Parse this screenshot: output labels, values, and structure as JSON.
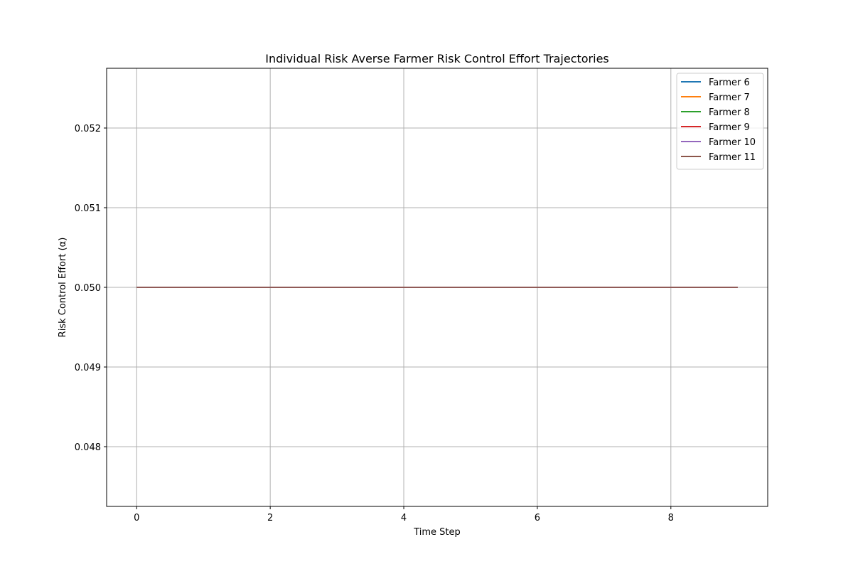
{
  "chart_data": {
    "type": "line",
    "title": "Individual Risk Averse Farmer Risk Control Effort Trajectories",
    "xlabel": "Time Step",
    "ylabel": "Risk Control Effort (α)",
    "xlim": [
      -0.45,
      9.45
    ],
    "ylim": [
      0.04725,
      0.05275
    ],
    "xticks": [
      0,
      2,
      4,
      6,
      8
    ],
    "xtick_labels": [
      "0",
      "2",
      "4",
      "6",
      "8"
    ],
    "yticks": [
      0.048,
      0.049,
      0.05,
      0.051,
      0.052
    ],
    "ytick_labels": [
      "0.048",
      "0.049",
      "0.050",
      "0.051",
      "0.052"
    ],
    "grid": true,
    "legend_position": "top-right",
    "x": [
      0,
      1,
      2,
      3,
      4,
      5,
      6,
      7,
      8,
      9
    ],
    "series": [
      {
        "name": "Farmer 6",
        "color": "#1f77b4",
        "values": [
          0.05,
          0.05,
          0.05,
          0.05,
          0.05,
          0.05,
          0.05,
          0.05,
          0.05,
          0.05
        ]
      },
      {
        "name": "Farmer 7",
        "color": "#ff7f0e",
        "values": [
          0.05,
          0.05,
          0.05,
          0.05,
          0.05,
          0.05,
          0.05,
          0.05,
          0.05,
          0.05
        ]
      },
      {
        "name": "Farmer 8",
        "color": "#2ca02c",
        "values": [
          0.05,
          0.05,
          0.05,
          0.05,
          0.05,
          0.05,
          0.05,
          0.05,
          0.05,
          0.05
        ]
      },
      {
        "name": "Farmer 9",
        "color": "#d62728",
        "values": [
          0.05,
          0.05,
          0.05,
          0.05,
          0.05,
          0.05,
          0.05,
          0.05,
          0.05,
          0.05
        ]
      },
      {
        "name": "Farmer 10",
        "color": "#9467bd",
        "values": [
          0.05,
          0.05,
          0.05,
          0.05,
          0.05,
          0.05,
          0.05,
          0.05,
          0.05,
          0.05
        ]
      },
      {
        "name": "Farmer 11",
        "color": "#8c564b",
        "values": [
          0.05,
          0.05,
          0.05,
          0.05,
          0.05,
          0.05,
          0.05,
          0.05,
          0.05,
          0.05
        ]
      }
    ]
  }
}
